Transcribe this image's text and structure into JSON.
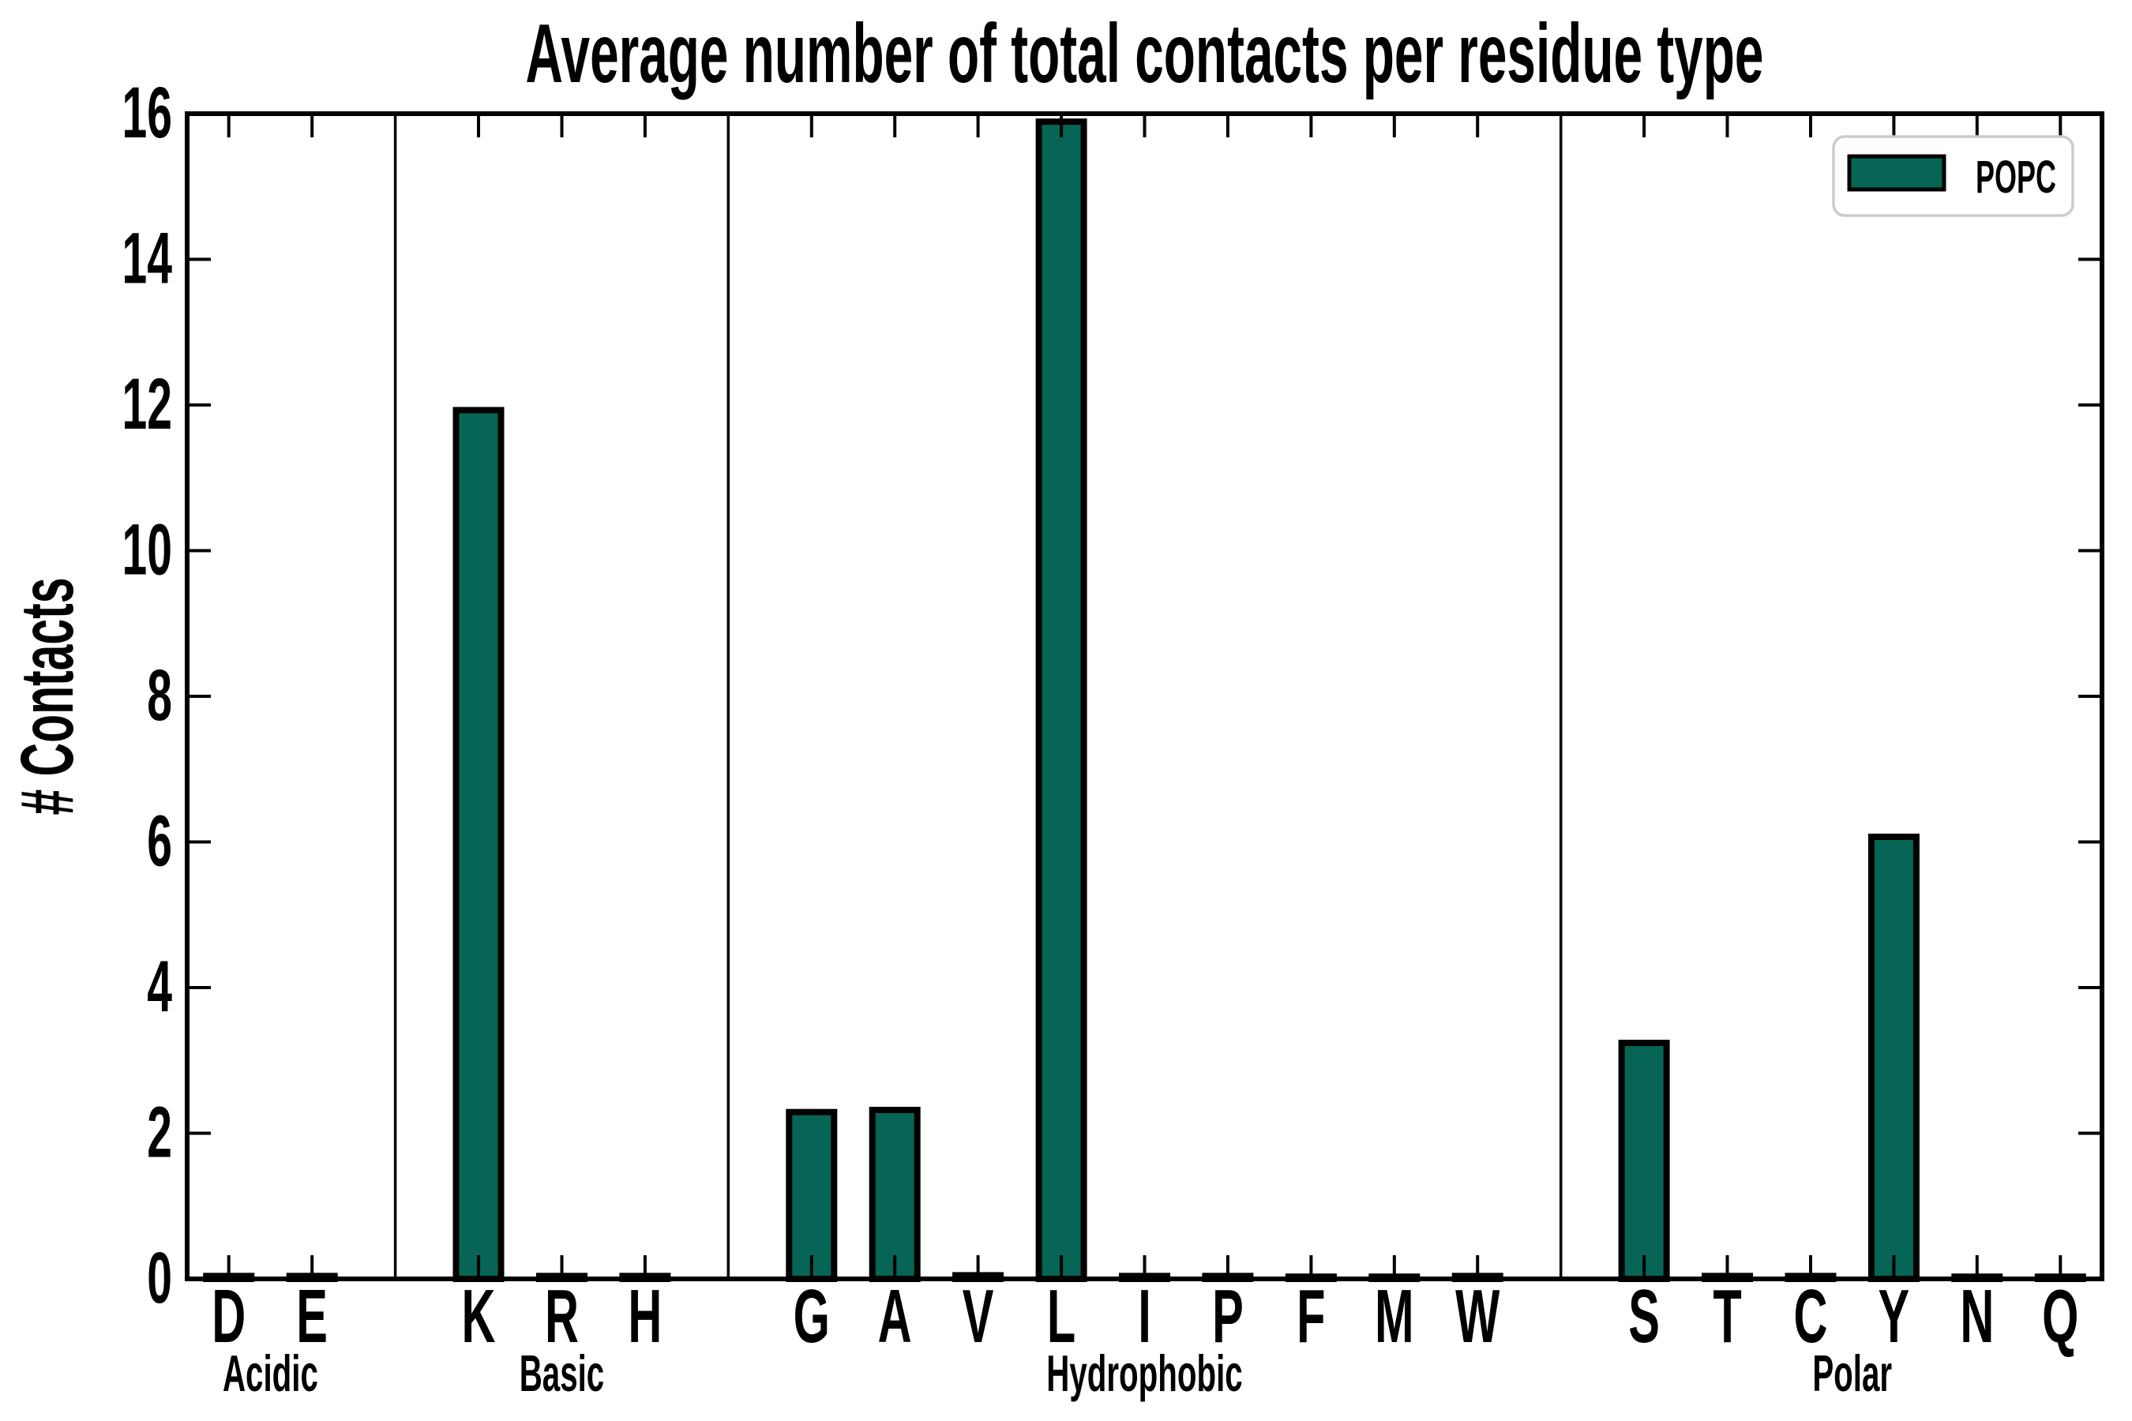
{
  "title": "Average number of total contacts per residue type",
  "legend": {
    "label": "POPC",
    "swatch_color": "#066554",
    "border_color": "#cbcbcb",
    "position": "upper right"
  },
  "colors": {
    "bar_fill": "#066554",
    "bar_edge": "#000000",
    "axis": "#000000",
    "background": "#ffffff"
  },
  "chart_data": {
    "type": "bar",
    "title": "Average number of total contacts per residue type",
    "xlabel": "",
    "ylabel": "# Contacts",
    "ylim": [
      0,
      16
    ],
    "yticks": [
      0,
      2,
      4,
      6,
      8,
      10,
      12,
      14,
      16
    ],
    "grid": false,
    "legend_position": "upper right",
    "series": [
      {
        "name": "POPC",
        "color": "#066554"
      }
    ],
    "groups": [
      {
        "label": "Acidic",
        "categories": [
          "D",
          "E"
        ],
        "values": [
          0.04,
          0.04
        ]
      },
      {
        "label": "Basic",
        "categories": [
          "K",
          "R",
          "H"
        ],
        "values": [
          11.93,
          0.04,
          0.04
        ]
      },
      {
        "label": "Hydrophobic",
        "categories": [
          "G",
          "A",
          "V",
          "L",
          "I",
          "P",
          "F",
          "M",
          "W"
        ],
        "values": [
          2.29,
          2.32,
          0.05,
          15.89,
          0.04,
          0.04,
          0.03,
          0.03,
          0.04
        ]
      },
      {
        "label": "Polar",
        "categories": [
          "S",
          "T",
          "C",
          "Y",
          "N",
          "Q"
        ],
        "values": [
          3.24,
          0.04,
          0.04,
          6.07,
          0.03,
          0.03
        ]
      }
    ],
    "categories": [
      "D",
      "E",
      "K",
      "R",
      "H",
      "G",
      "A",
      "V",
      "L",
      "I",
      "P",
      "F",
      "M",
      "W",
      "S",
      "T",
      "C",
      "Y",
      "N",
      "Q"
    ],
    "values": [
      0.04,
      0.04,
      11.93,
      0.04,
      0.04,
      2.29,
      2.32,
      0.05,
      15.89,
      0.04,
      0.04,
      0.03,
      0.03,
      0.04,
      3.24,
      0.04,
      0.04,
      6.07,
      0.03,
      0.03
    ]
  }
}
